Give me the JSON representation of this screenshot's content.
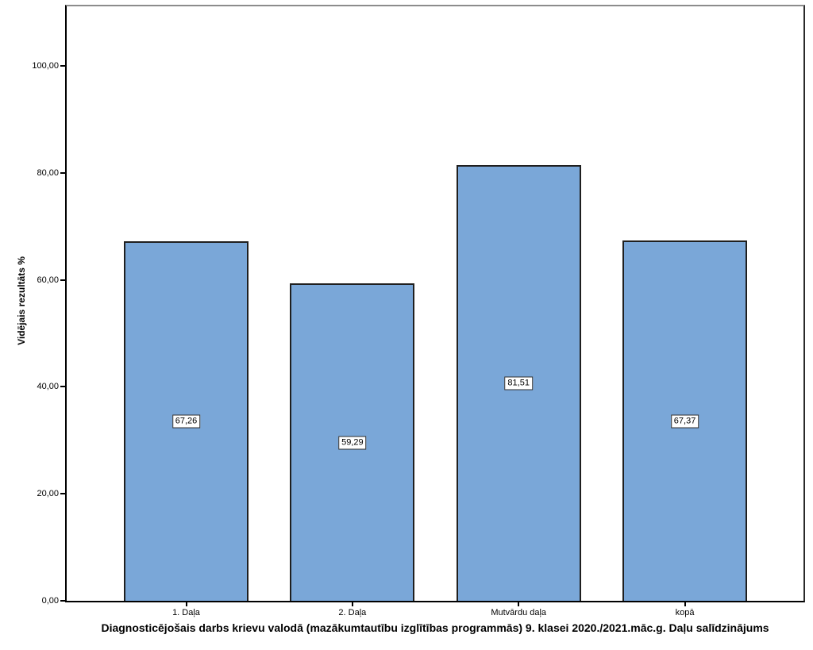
{
  "figure": {
    "y_axis_label": "Vidējais rezultāts %",
    "bottom_title": "Diagnosticējošais darbs krievu valodā (mazākumtautību izglītības programmās) 9. klasei 2020./2021.māc.g. Daļu salīdzinājums"
  },
  "chart_data": {
    "type": "bar",
    "title": "Diagnosticējošais darbs krievu valodā (mazākumtautību izglītības programmās) 9. klasei 2020./2021.māc.g. Daļu salīdzinājums",
    "xlabel": "",
    "ylabel": "Vidējais rezultāts %",
    "categories": [
      "1. Daļa",
      "2. Daļa",
      "Mutvārdu daļa",
      "kopā"
    ],
    "values": [
      67.26,
      59.29,
      81.51,
      67.37
    ],
    "bar_labels": [
      "67,26",
      "59,29",
      "81,51",
      "67,37"
    ],
    "ytick_values": [
      0,
      20,
      40,
      60,
      80,
      100
    ],
    "ytick_labels": [
      "0,00",
      "20,00",
      "40,00",
      "60,00",
      "80,00",
      "100,00"
    ],
    "ylim": [
      0,
      111.4
    ],
    "grid": false,
    "legend_position": "none",
    "colors": {
      "bar_fill": "#7AA7D8",
      "bar_border": "#1f1f1f",
      "frame_border": "#000000",
      "background": "#ffffff",
      "label_box_bg": "#ffffff",
      "label_box_border": "#2e2e2e"
    }
  }
}
